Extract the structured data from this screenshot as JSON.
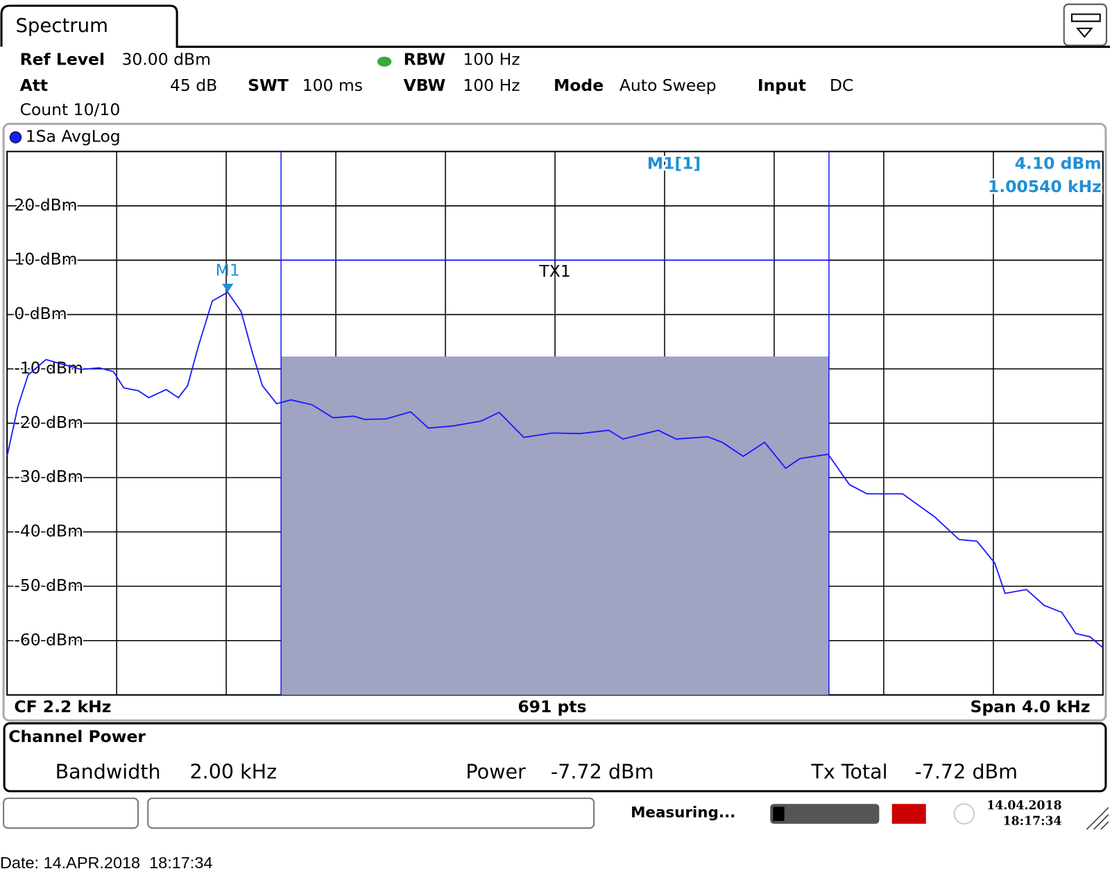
{
  "header": {
    "tab": "Spectrum",
    "ref_level_label": "Ref Level",
    "ref_level": "30.00 dBm",
    "att_label": "Att",
    "att": "45 dB",
    "swt_label": "SWT",
    "swt": "100 ms",
    "rbw_label": "RBW",
    "rbw": "100 Hz",
    "vbw_label": "VBW",
    "vbw": "100 Hz",
    "mode_label": "Mode",
    "mode": "Auto Sweep",
    "input_label": "Input",
    "input": "DC",
    "count": "Count 10/10"
  },
  "chart_data": {
    "type": "line",
    "grid": true,
    "ylim": [
      -70,
      30
    ],
    "yticks": [
      {
        "value": 20,
        "label": "20 dBm"
      },
      {
        "value": 10,
        "label": "10 dBm"
      },
      {
        "value": 0,
        "label": "0 dBm"
      },
      {
        "value": -10,
        "label": "-10 dBm"
      },
      {
        "value": -20,
        "label": "-20 dBm"
      },
      {
        "value": -30,
        "label": "-30 dBm"
      },
      {
        "value": -40,
        "label": "-40 dBm"
      },
      {
        "value": -50,
        "label": "-50 dBm"
      },
      {
        "value": -60,
        "label": "-60 dBm"
      }
    ],
    "xlim": [
      0.2,
      4.2
    ],
    "xticks": [
      0.6,
      1.0,
      1.4,
      1.8,
      2.2,
      2.6,
      3.0,
      3.4,
      3.8
    ],
    "x": [
      0.2,
      0.239,
      0.277,
      0.342,
      0.407,
      0.471,
      0.536,
      0.588,
      0.626,
      0.678,
      0.717,
      0.781,
      0.825,
      0.859,
      0.898,
      0.949,
      1.0054,
      1.054,
      1.093,
      1.132,
      1.184,
      1.236,
      1.313,
      1.39,
      1.466,
      1.505,
      1.583,
      1.673,
      1.738,
      1.828,
      1.931,
      1.996,
      2.086,
      2.19,
      2.293,
      2.396,
      2.448,
      2.577,
      2.642,
      2.758,
      2.81,
      2.887,
      2.965,
      3.042,
      3.094,
      3.197,
      3.275,
      3.339,
      3.469,
      3.585,
      3.675,
      3.74,
      3.805,
      3.843,
      3.921,
      3.985,
      4.05,
      4.101,
      4.153,
      4.2
    ],
    "series": [
      {
        "name": "1Sa AvgLog",
        "color": "#1a1aff",
        "values": [
          -26.1,
          -17.0,
          -11.1,
          -8.3,
          -9.2,
          -10.1,
          -9.8,
          -10.5,
          -13.5,
          -14.0,
          -15.3,
          -13.8,
          -15.3,
          -13.1,
          -5.9,
          2.5,
          4.1,
          0.6,
          -6.6,
          -13.1,
          -16.4,
          -15.7,
          -16.6,
          -19.0,
          -18.7,
          -19.3,
          -19.2,
          -17.9,
          -20.9,
          -20.5,
          -19.6,
          -18.0,
          -22.6,
          -21.8,
          -21.9,
          -21.3,
          -22.9,
          -21.3,
          -22.9,
          -22.5,
          -23.5,
          -26.1,
          -23.5,
          -28.3,
          -26.5,
          -25.7,
          -31.3,
          -33.0,
          -33.0,
          -37.2,
          -41.4,
          -41.7,
          -45.7,
          -51.3,
          -50.6,
          -53.5,
          -54.8,
          -58.7,
          -59.3,
          -61.3
        ]
      }
    ],
    "marker": {
      "name": "M1",
      "title": "M1[1]",
      "x": 1.0054,
      "y": 4.1,
      "y_label": "4.10 dBm",
      "x_label": "1.00540 kHz",
      "color": "#1f8fd6"
    },
    "channel": {
      "name": "TX1",
      "start": 1.2,
      "end": 3.2,
      "power": -7.72,
      "color": "#a0a3c2"
    },
    "footer_left": "CF 2.2 kHz",
    "footer_center": "691 pts",
    "footer_right": "Span 4.0 kHz"
  },
  "channel_power": {
    "title": "Channel Power",
    "bandwidth_label": "Bandwidth",
    "bandwidth": "2.00 kHz",
    "power_label": "Power",
    "power": "-7.72 dBm",
    "tx_total_label": "Tx Total",
    "tx_total": "-7.72 dBm"
  },
  "status": {
    "message": "Measuring...",
    "date": "14.04.2018",
    "time": "18:17:34"
  },
  "date_line": "Date: 14.APR.2018  18:17:34"
}
